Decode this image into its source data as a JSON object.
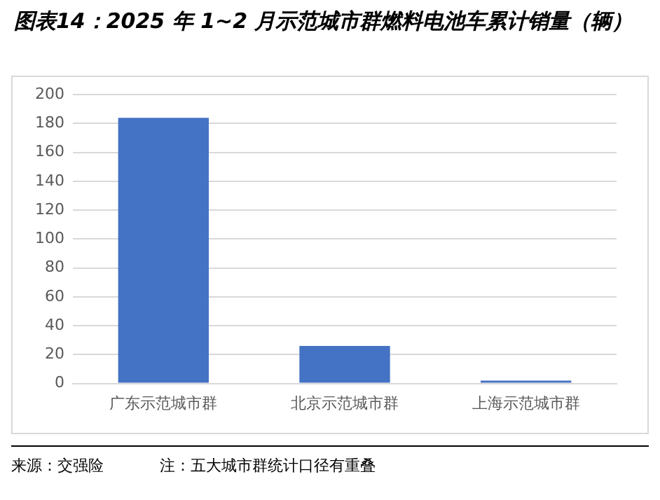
{
  "chart_data": {
    "type": "bar",
    "title": "图表14：2025 年 1~2 月示范城市群燃料电池车累计销量（辆）",
    "categories": [
      "广东示范城市群",
      "北京示范城市群",
      "上海示范城市群"
    ],
    "values": [
      184,
      26,
      2
    ],
    "color": "#4472c4",
    "ylim": [
      0,
      200
    ],
    "yticks": [
      0,
      20,
      40,
      60,
      80,
      100,
      120,
      140,
      160,
      180,
      200
    ],
    "grid": "y",
    "legend": false,
    "annotations": [
      "来源：交强险",
      "注：五大城市群统计口径有重叠"
    ]
  }
}
